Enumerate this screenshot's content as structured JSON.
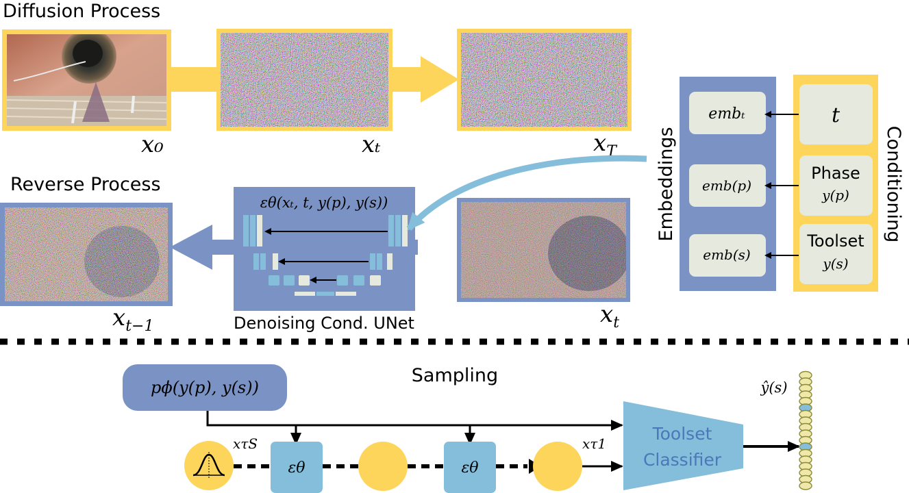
{
  "diffusion": {
    "title": "Diffusion Process",
    "x0": "x₀",
    "xt": "xₜ",
    "xT_main": "x",
    "xT_sub": "T"
  },
  "reverse": {
    "title": "Reverse Process",
    "xtm1_main": "x",
    "xtm1_sub": "t−1",
    "xt_main": "x",
    "xt_sub": "t",
    "unet_label": "Denoising Cond. UNet",
    "unet_formula": "εθ(xₜ, t, y(p), y(s))"
  },
  "embeddings": {
    "title": "Embeddings",
    "items": [
      "embₜ",
      "emb(p)",
      "emb(s)"
    ]
  },
  "conditioning": {
    "title": "Conditioning",
    "t": "t",
    "phase": "Phase",
    "phase_var": "y(p)",
    "toolset": "Toolset",
    "toolset_var": "y(s)"
  },
  "sampling": {
    "title": "Sampling",
    "prior": "pϕ(y(p), y(s))",
    "eps1": "εθ",
    "eps2": "εθ",
    "x_tau_S": "xτS",
    "x_tau_1": "xτ1",
    "classifier_line1": "Toolset",
    "classifier_line2": "Classifier",
    "output": "ŷ(s)"
  },
  "colors": {
    "yellow": "#FDD55A",
    "blue": "#7A93C4",
    "light_blue": "#85BEDA",
    "box_fill": "#E5E9DE",
    "dots_fill": "#EFE8A8"
  }
}
